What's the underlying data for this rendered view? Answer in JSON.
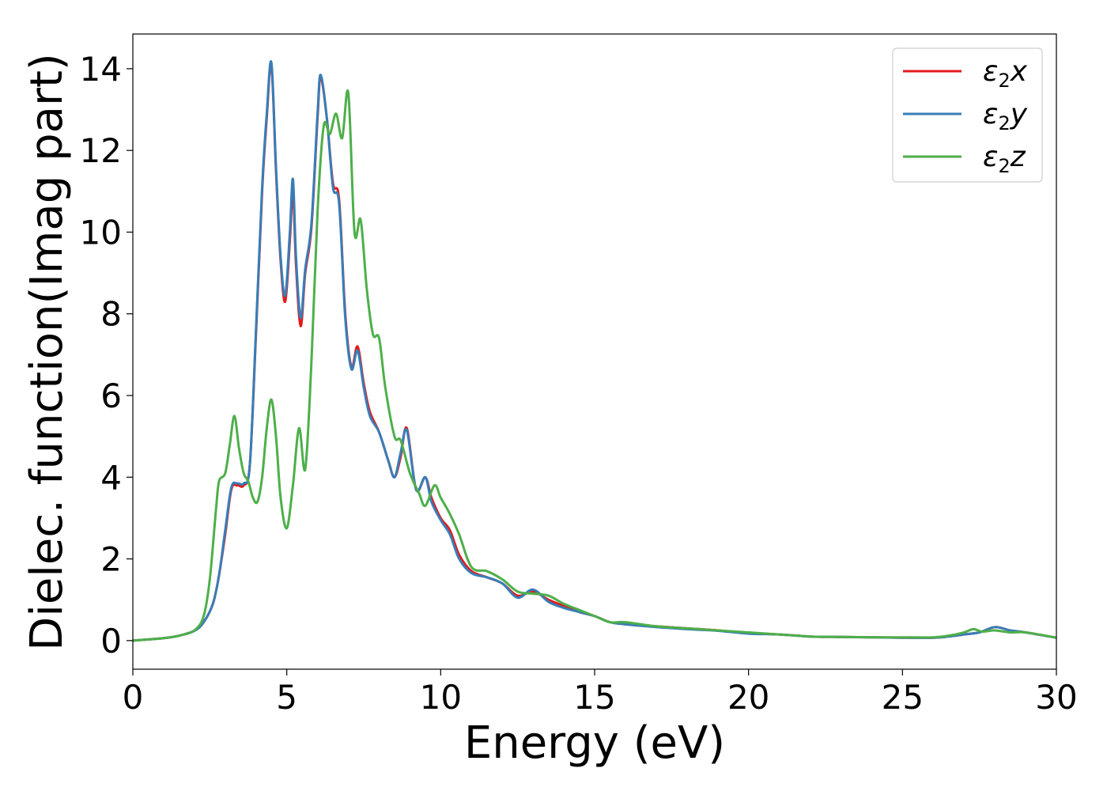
{
  "chart_data": {
    "type": "line",
    "xlabel": "Energy (eV)",
    "ylabel": "Dielec. function(Imag part)",
    "xlim": [
      0,
      30
    ],
    "ylim": [
      -0.7,
      14.85
    ],
    "xticks": [
      0,
      5,
      10,
      15,
      20,
      25,
      30
    ],
    "yticks": [
      0,
      2,
      4,
      6,
      8,
      10,
      12,
      14
    ],
    "grid": false,
    "legend_position": "top-right",
    "series": [
      {
        "name": "x",
        "legend_main": "ε",
        "legend_sub": "2",
        "legend_tail": "x",
        "color": "#e41a1c",
        "x": [
          0,
          1,
          1.5,
          2,
          2.3,
          2.6,
          2.8,
          3.0,
          3.2,
          3.4,
          3.6,
          3.8,
          4.0,
          4.2,
          4.35,
          4.5,
          4.65,
          4.8,
          4.95,
          5.1,
          5.2,
          5.3,
          5.45,
          5.6,
          5.8,
          6.0,
          6.1,
          6.3,
          6.5,
          6.7,
          6.9,
          7.1,
          7.3,
          7.5,
          7.7,
          8.0,
          8.3,
          8.5,
          8.7,
          8.9,
          9.2,
          9.5,
          9.7,
          10.0,
          10.3,
          10.6,
          11.0,
          11.5,
          12.0,
          12.5,
          13.0,
          13.5,
          14.0,
          14.5,
          15.0,
          15.5,
          16.0,
          17.0,
          18.0,
          19.0,
          20.0,
          21.0,
          22.0,
          23.0,
          24.0,
          25.0,
          26.0,
          26.5,
          27.0,
          27.5,
          28.0,
          28.5,
          29.0,
          30.0
        ],
        "y": [
          0,
          0.06,
          0.12,
          0.24,
          0.45,
          0.9,
          1.6,
          2.6,
          3.7,
          3.8,
          3.8,
          4.3,
          7.5,
          11.0,
          12.8,
          14.1,
          11.5,
          9.3,
          8.3,
          9.8,
          11.0,
          9.2,
          7.7,
          9.0,
          10.1,
          12.8,
          13.8,
          12.8,
          11.2,
          10.8,
          8.0,
          6.7,
          7.2,
          6.3,
          5.6,
          5.1,
          4.4,
          4.0,
          4.5,
          5.2,
          3.7,
          4.0,
          3.5,
          3.0,
          2.7,
          2.1,
          1.7,
          1.55,
          1.4,
          1.1,
          1.2,
          1.0,
          0.85,
          0.7,
          0.6,
          0.45,
          0.4,
          0.35,
          0.3,
          0.25,
          0.18,
          0.15,
          0.1,
          0.09,
          0.08,
          0.07,
          0.07,
          0.1,
          0.15,
          0.2,
          0.33,
          0.25,
          0.2,
          0.07
        ]
      },
      {
        "name": "y",
        "legend_main": "ε",
        "legend_sub": "2",
        "legend_tail": "y",
        "color": "#377eb8",
        "x": [
          0,
          1,
          1.5,
          2,
          2.3,
          2.6,
          2.8,
          3.0,
          3.2,
          3.4,
          3.6,
          3.8,
          4.0,
          4.2,
          4.35,
          4.5,
          4.65,
          4.8,
          4.95,
          5.1,
          5.2,
          5.3,
          5.45,
          5.6,
          5.8,
          6.0,
          6.1,
          6.3,
          6.5,
          6.7,
          6.9,
          7.1,
          7.3,
          7.5,
          7.7,
          8.0,
          8.3,
          8.5,
          8.7,
          8.9,
          9.2,
          9.5,
          9.7,
          10.0,
          10.3,
          10.6,
          11.0,
          11.5,
          12.0,
          12.5,
          13.0,
          13.5,
          14.0,
          14.5,
          15.0,
          15.5,
          16.0,
          17.0,
          18.0,
          19.0,
          20.0,
          21.0,
          22.0,
          23.0,
          24.0,
          25.0,
          26.0,
          26.5,
          27.0,
          27.5,
          28.0,
          28.5,
          29.0,
          30.0
        ],
        "y": [
          0,
          0.06,
          0.12,
          0.24,
          0.45,
          0.9,
          1.6,
          2.7,
          3.75,
          3.85,
          3.85,
          4.3,
          7.6,
          11.1,
          12.9,
          14.15,
          11.6,
          9.4,
          8.45,
          10.0,
          11.3,
          9.4,
          7.9,
          9.1,
          10.2,
          12.9,
          13.85,
          12.8,
          11.1,
          10.7,
          7.9,
          6.65,
          7.1,
          6.2,
          5.5,
          5.1,
          4.4,
          4.0,
          4.6,
          5.15,
          3.7,
          4.0,
          3.4,
          2.95,
          2.6,
          2.0,
          1.65,
          1.55,
          1.4,
          1.05,
          1.25,
          0.95,
          0.8,
          0.7,
          0.6,
          0.45,
          0.4,
          0.33,
          0.28,
          0.24,
          0.17,
          0.15,
          0.1,
          0.09,
          0.08,
          0.07,
          0.07,
          0.1,
          0.15,
          0.2,
          0.33,
          0.25,
          0.2,
          0.07
        ]
      },
      {
        "name": "z",
        "legend_main": "ε",
        "legend_sub": "2",
        "legend_tail": "z",
        "color": "#4daf4a",
        "x": [
          0,
          1,
          1.5,
          2,
          2.3,
          2.5,
          2.7,
          2.8,
          3.0,
          3.15,
          3.3,
          3.45,
          3.6,
          3.75,
          3.9,
          4.05,
          4.2,
          4.35,
          4.5,
          4.65,
          4.8,
          5.0,
          5.2,
          5.4,
          5.6,
          5.8,
          6.0,
          6.2,
          6.4,
          6.6,
          6.8,
          7.0,
          7.2,
          7.4,
          7.6,
          7.8,
          8.0,
          8.2,
          8.5,
          8.7,
          9.0,
          9.3,
          9.5,
          9.8,
          10.0,
          10.3,
          10.6,
          11.0,
          11.5,
          12.0,
          12.5,
          13.0,
          13.5,
          14.0,
          14.5,
          15.0,
          15.5,
          16.0,
          17.0,
          18.0,
          19.0,
          20.0,
          21.0,
          22.0,
          23.0,
          24.0,
          25.0,
          26.0,
          26.5,
          27.0,
          27.3,
          27.6,
          28.0,
          28.5,
          29.0,
          30.0
        ],
        "y": [
          0,
          0.06,
          0.12,
          0.25,
          0.6,
          1.5,
          3.2,
          3.9,
          4.1,
          4.8,
          5.5,
          4.7,
          4.1,
          3.9,
          3.5,
          3.4,
          4.0,
          5.2,
          5.9,
          5.0,
          3.5,
          2.75,
          3.8,
          5.2,
          4.2,
          6.8,
          10.5,
          12.6,
          12.4,
          12.9,
          12.3,
          13.4,
          10.0,
          10.3,
          8.6,
          7.5,
          7.4,
          6.2,
          5.0,
          4.9,
          4.1,
          3.6,
          3.3,
          3.8,
          3.5,
          3.1,
          2.6,
          1.8,
          1.7,
          1.5,
          1.2,
          1.15,
          1.1,
          0.9,
          0.75,
          0.6,
          0.45,
          0.45,
          0.35,
          0.3,
          0.25,
          0.2,
          0.15,
          0.1,
          0.09,
          0.08,
          0.08,
          0.08,
          0.12,
          0.2,
          0.28,
          0.22,
          0.25,
          0.2,
          0.2,
          0.07
        ]
      }
    ]
  }
}
